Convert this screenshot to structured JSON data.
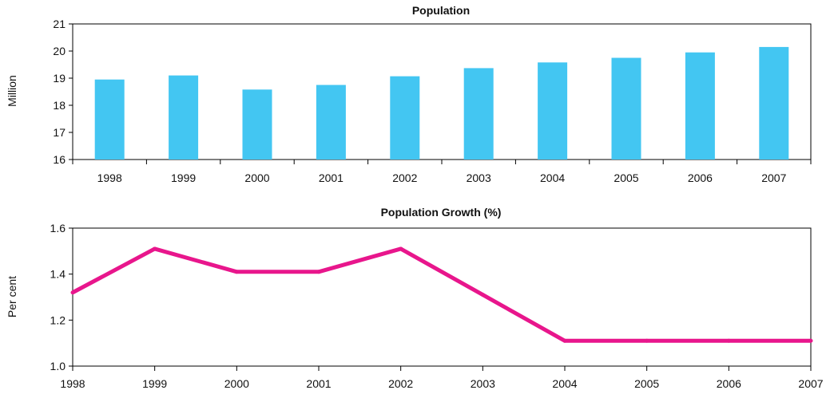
{
  "chart_data": [
    {
      "type": "bar",
      "title": "Population",
      "xlabel": "",
      "ylabel": "Million",
      "categories": [
        "1998",
        "1999",
        "2000",
        "2001",
        "2002",
        "2003",
        "2004",
        "2005",
        "2006",
        "2007"
      ],
      "values": [
        18.95,
        19.1,
        18.58,
        18.75,
        19.07,
        19.37,
        19.58,
        19.75,
        19.95,
        20.15
      ],
      "ylim": [
        16,
        21
      ],
      "yticks": [
        "16",
        "17",
        "18",
        "19",
        "20",
        "21"
      ],
      "grid": false,
      "color": "#43c6f2"
    },
    {
      "type": "line",
      "title": "Population Growth (%)",
      "xlabel": "",
      "ylabel": "Per cent",
      "x": [
        "1998",
        "1999",
        "2000",
        "2001",
        "2002",
        "2003",
        "2004",
        "2005",
        "2006",
        "2007"
      ],
      "values": [
        1.32,
        1.51,
        1.41,
        1.41,
        1.51,
        1.31,
        1.11,
        1.11,
        1.11,
        1.11
      ],
      "ylim": [
        1.0,
        1.6
      ],
      "yticks": [
        "1.0",
        "1.2",
        "1.4",
        "1.6"
      ],
      "grid": false,
      "color": "#e8168c"
    }
  ]
}
